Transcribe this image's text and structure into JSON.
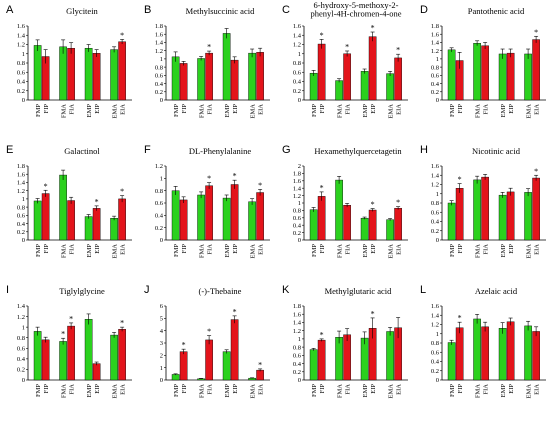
{
  "colors": {
    "control": "#2bd11e",
    "treatment": "#e3141b",
    "error": "#000000"
  },
  "chart_data": [
    {
      "type": "bar",
      "letter": "A",
      "title": "Glycitein",
      "ylim": [
        0,
        1.6
      ],
      "yticks": [
        "0",
        "0.2",
        "0.4",
        "0.6",
        "0.8",
        "1",
        "1.2",
        "1.4",
        "1.6"
      ],
      "categories": [
        "FMP",
        "FIP",
        "FMA",
        "FIA",
        "EMP",
        "EIP",
        "EMA",
        "EIA"
      ],
      "series": [
        {
          "role": "control",
          "values": [
            1.18,
            null,
            1.15,
            null,
            1.12,
            null,
            1.09,
            null
          ]
        },
        {
          "role": "treatment",
          "values": [
            null,
            0.94,
            null,
            1.12,
            null,
            1.01,
            null,
            1.26
          ]
        }
      ],
      "errors": [
        0.12,
        0.15,
        0.15,
        0.12,
        0.08,
        0.08,
        0.06,
        0.05
      ],
      "significant": [
        false,
        false,
        false,
        false,
        false,
        false,
        false,
        true
      ]
    },
    {
      "type": "bar",
      "letter": "B",
      "title": "Methylsuccinic acid",
      "ylim": [
        0,
        1.8
      ],
      "yticks": [
        "0",
        "0.2",
        "0.4",
        "0.6",
        "0.8",
        "1",
        "1.2",
        "1.4",
        "1.6",
        "1.8"
      ],
      "categories": [
        "FMP",
        "FIP",
        "FMA",
        "FIA",
        "EMP",
        "EIP",
        "EMA",
        "EIA"
      ],
      "series": [
        {
          "role": "control",
          "values": [
            1.05,
            null,
            1.01,
            null,
            1.62,
            null,
            1.14,
            null
          ]
        },
        {
          "role": "treatment",
          "values": [
            null,
            0.89,
            null,
            1.14,
            null,
            0.97,
            null,
            1.16
          ]
        }
      ],
      "errors": [
        0.12,
        0.05,
        0.05,
        0.05,
        0.12,
        0.08,
        0.1,
        0.1
      ],
      "significant": [
        false,
        false,
        false,
        true,
        false,
        false,
        false,
        false
      ]
    },
    {
      "type": "bar",
      "letter": "C",
      "title": "6-hydroxy-5-methoxy-2-phenyl-4H-chromen-4-one",
      "ylim": [
        0,
        1.6
      ],
      "yticks": [
        "0",
        "0.2",
        "0.4",
        "0.6",
        "0.8",
        "1",
        "1.2",
        "1.4",
        "1.6"
      ],
      "categories": [
        "FMP",
        "FIP",
        "FMA",
        "FIA",
        "EMP",
        "EIP",
        "EMA",
        "EIA"
      ],
      "series": [
        {
          "role": "control",
          "values": [
            0.58,
            null,
            0.42,
            null,
            0.62,
            null,
            0.57,
            null
          ]
        },
        {
          "role": "treatment",
          "values": [
            null,
            1.21,
            null,
            1.0,
            null,
            1.37,
            null,
            0.91
          ]
        }
      ],
      "errors": [
        0.06,
        0.1,
        0.04,
        0.06,
        0.05,
        0.1,
        0.05,
        0.08
      ],
      "significant": [
        false,
        true,
        false,
        true,
        false,
        true,
        false,
        true
      ]
    },
    {
      "type": "bar",
      "letter": "D",
      "title": "Pantothenic acid",
      "ylim": [
        0,
        1.8
      ],
      "yticks": [
        "0",
        "0.2",
        "0.4",
        "0.6",
        "0.8",
        "1",
        "1.2",
        "1.4",
        "1.6",
        "1.8"
      ],
      "categories": [
        "FMP",
        "FIP",
        "FMA",
        "FIA",
        "EMP",
        "EIP",
        "EMA",
        "EIA"
      ],
      "series": [
        {
          "role": "control",
          "values": [
            1.22,
            null,
            1.38,
            null,
            1.12,
            null,
            1.12,
            null
          ]
        },
        {
          "role": "treatment",
          "values": [
            null,
            0.96,
            null,
            1.32,
            null,
            1.14,
            null,
            1.47
          ]
        }
      ],
      "errors": [
        0.05,
        0.2,
        0.06,
        0.08,
        0.12,
        0.1,
        0.12,
        0.08
      ],
      "significant": [
        false,
        false,
        false,
        false,
        false,
        false,
        false,
        true
      ]
    },
    {
      "type": "bar",
      "letter": "E",
      "title": "Galactinol",
      "ylim": [
        0,
        1.8
      ],
      "yticks": [
        "0",
        "0.2",
        "0.4",
        "0.6",
        "0.8",
        "1",
        "1.2",
        "1.4",
        "1.6",
        "1.8"
      ],
      "categories": [
        "FMP",
        "FIP",
        "FMA",
        "FIA",
        "EMP",
        "EIP",
        "EMA",
        "EIA"
      ],
      "series": [
        {
          "role": "control",
          "values": [
            0.95,
            null,
            1.58,
            null,
            0.57,
            null,
            0.53,
            null
          ]
        },
        {
          "role": "treatment",
          "values": [
            null,
            1.13,
            null,
            0.96,
            null,
            0.77,
            null,
            1.0
          ]
        }
      ],
      "errors": [
        0.06,
        0.08,
        0.12,
        0.08,
        0.05,
        0.06,
        0.05,
        0.08
      ],
      "significant": [
        false,
        true,
        false,
        false,
        false,
        true,
        false,
        true
      ]
    },
    {
      "type": "bar",
      "letter": "F",
      "title": "DL-Phenylalanine",
      "ylim": [
        0,
        1.2
      ],
      "yticks": [
        "0",
        "0.2",
        "0.4",
        "0.6",
        "0.8",
        "1",
        "1.2"
      ],
      "categories": [
        "FMP",
        "FIP",
        "FMA",
        "FIA",
        "EMP",
        "EIP",
        "EMA",
        "EIA"
      ],
      "series": [
        {
          "role": "control",
          "values": [
            0.8,
            null,
            0.73,
            null,
            0.68,
            null,
            0.62,
            null
          ]
        },
        {
          "role": "treatment",
          "values": [
            null,
            0.65,
            null,
            0.88,
            null,
            0.9,
            null,
            0.77
          ]
        }
      ],
      "errors": [
        0.07,
        0.05,
        0.05,
        0.05,
        0.05,
        0.07,
        0.05,
        0.05
      ],
      "significant": [
        false,
        false,
        false,
        true,
        false,
        true,
        false,
        true
      ]
    },
    {
      "type": "bar",
      "letter": "G",
      "title": "Hexamethylquercetagetin",
      "ylim": [
        0,
        2
      ],
      "yticks": [
        "0",
        "0.2",
        "0.4",
        "0.6",
        "0.8",
        "1",
        "1.2",
        "1.4",
        "1.6",
        "1.8",
        "2"
      ],
      "categories": [
        "FMP",
        "FIP",
        "FMA",
        "FIA",
        "EMP",
        "EIP",
        "EMA",
        "EIA"
      ],
      "series": [
        {
          "role": "control",
          "values": [
            0.82,
            null,
            1.62,
            null,
            0.59,
            null,
            0.55,
            null
          ]
        },
        {
          "role": "treatment",
          "values": [
            null,
            1.18,
            null,
            0.94,
            null,
            0.81,
            null,
            0.86
          ]
        }
      ],
      "errors": [
        0.06,
        0.12,
        0.1,
        0.05,
        0.03,
        0.04,
        0.03,
        0.04
      ],
      "significant": [
        false,
        true,
        false,
        false,
        false,
        true,
        false,
        true
      ]
    },
    {
      "type": "bar",
      "letter": "H",
      "title": "Nicotinic acid",
      "ylim": [
        0,
        1.6
      ],
      "yticks": [
        "0",
        "0.2",
        "0.4",
        "0.6",
        "0.8",
        "1",
        "1.2",
        "1.4",
        "1.6"
      ],
      "categories": [
        "FMP",
        "FIP",
        "FMA",
        "FIA",
        "EMP",
        "EIP",
        "EMA",
        "EIA"
      ],
      "series": [
        {
          "role": "control",
          "values": [
            0.8,
            null,
            1.3,
            null,
            0.97,
            null,
            1.03,
            null
          ]
        },
        {
          "role": "treatment",
          "values": [
            null,
            1.12,
            null,
            1.36,
            null,
            1.04,
            null,
            1.34
          ]
        }
      ],
      "errors": [
        0.05,
        0.1,
        0.08,
        0.06,
        0.06,
        0.08,
        0.08,
        0.06
      ],
      "significant": [
        false,
        true,
        false,
        false,
        false,
        false,
        false,
        true
      ]
    },
    {
      "type": "bar",
      "letter": "I",
      "title": "Tiglylglycine",
      "ylim": [
        0,
        1.4
      ],
      "yticks": [
        "0",
        "0.2",
        "0.4",
        "0.6",
        "0.8",
        "1",
        "1.2",
        "1.4"
      ],
      "categories": [
        "FMP",
        "FIP",
        "FMA",
        "FIA",
        "EMP",
        "EIP",
        "EMA",
        "EIA"
      ],
      "series": [
        {
          "role": "control",
          "values": [
            0.92,
            null,
            0.73,
            null,
            1.15,
            null,
            0.85,
            null
          ]
        },
        {
          "role": "treatment",
          "values": [
            null,
            0.76,
            null,
            1.02,
            null,
            0.31,
            null,
            0.96
          ]
        }
      ],
      "errors": [
        0.08,
        0.05,
        0.06,
        0.06,
        0.1,
        0.03,
        0.05,
        0.04
      ],
      "significant": [
        false,
        false,
        true,
        true,
        false,
        false,
        false,
        true
      ]
    },
    {
      "type": "bar",
      "letter": "J",
      "title": "(-)-Thebaine",
      "ylim": [
        0,
        6
      ],
      "yticks": [
        "0",
        "1",
        "2",
        "3",
        "4",
        "5",
        "6"
      ],
      "categories": [
        "FMP",
        "FIP",
        "FMA",
        "FIA",
        "EMP",
        "EIP",
        "EMA",
        "EIA"
      ],
      "series": [
        {
          "role": "control",
          "values": [
            0.45,
            null,
            0.1,
            null,
            2.3,
            null,
            0.15,
            null
          ]
        },
        {
          "role": "treatment",
          "values": [
            null,
            2.3,
            null,
            3.25,
            null,
            4.9,
            null,
            0.8
          ]
        }
      ],
      "errors": [
        0.05,
        0.2,
        0.03,
        0.35,
        0.15,
        0.3,
        0.03,
        0.1
      ],
      "significant": [
        false,
        true,
        false,
        true,
        false,
        true,
        false,
        true
      ]
    },
    {
      "type": "bar",
      "letter": "K",
      "title": "Methylglutaric acid",
      "ylim": [
        0,
        1.8
      ],
      "yticks": [
        "0",
        "0.2",
        "0.4",
        "0.6",
        "0.8",
        "1",
        "1.2",
        "1.4",
        "1.6",
        "1.8"
      ],
      "categories": [
        "FMP",
        "FIP",
        "FMA",
        "FIA",
        "EMP",
        "EIP",
        "EMA",
        "EIA"
      ],
      "series": [
        {
          "role": "control",
          "values": [
            0.74,
            null,
            1.04,
            null,
            1.02,
            null,
            1.18,
            null
          ]
        },
        {
          "role": "treatment",
          "values": [
            null,
            0.97,
            null,
            1.1,
            null,
            1.26,
            null,
            1.27
          ]
        }
      ],
      "errors": [
        0.03,
        0.03,
        0.15,
        0.15,
        0.15,
        0.25,
        0.1,
        0.25
      ],
      "significant": [
        false,
        true,
        false,
        false,
        false,
        true,
        false,
        false
      ]
    },
    {
      "type": "bar",
      "letter": "L",
      "title": "Azelaic acid",
      "ylim": [
        0,
        1.6
      ],
      "yticks": [
        "0",
        "0.2",
        "0.4",
        "0.6",
        "0.8",
        "1",
        "1.2",
        "1.4",
        "1.6"
      ],
      "categories": [
        "FMP",
        "FIP",
        "FMA",
        "FIA",
        "EMP",
        "EIP",
        "EMA",
        "EIA"
      ],
      "series": [
        {
          "role": "control",
          "values": [
            0.81,
            null,
            1.32,
            null,
            1.12,
            null,
            1.17,
            null
          ]
        },
        {
          "role": "treatment",
          "values": [
            null,
            1.13,
            null,
            1.15,
            null,
            1.26,
            null,
            1.05
          ]
        }
      ],
      "errors": [
        0.05,
        0.12,
        0.1,
        0.1,
        0.12,
        0.08,
        0.1,
        0.1
      ],
      "significant": [
        false,
        true,
        false,
        false,
        false,
        false,
        false,
        false
      ]
    }
  ]
}
